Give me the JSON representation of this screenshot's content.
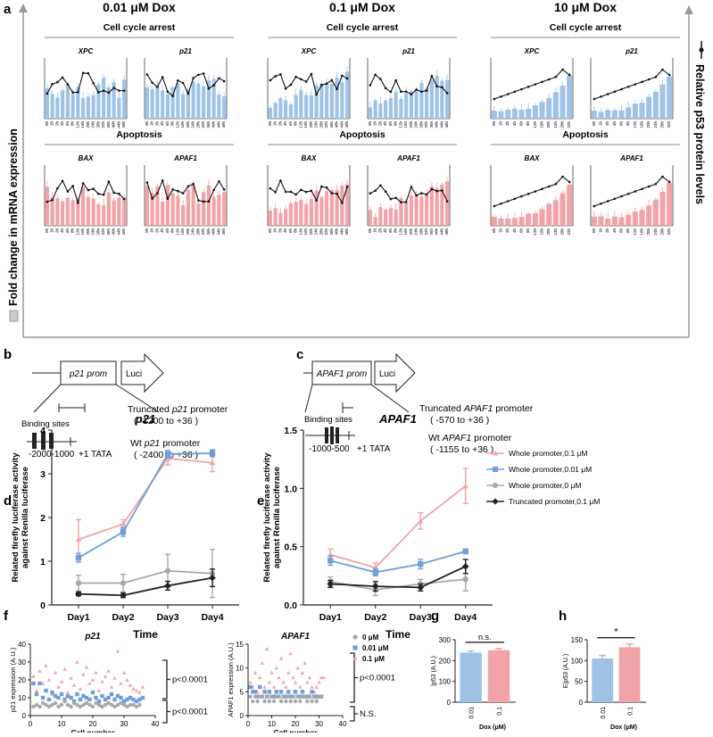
{
  "panel_letters": {
    "a": "a",
    "b": "b",
    "c": "c",
    "d": "d",
    "e": "e",
    "f": "f",
    "g": "g",
    "h": "h"
  },
  "panel_a": {
    "dose_headers": [
      "0.01 μM  Dox",
      "0.1 μM  Dox",
      "10 μM  Dox"
    ],
    "left_axis_label": "Fold change in mRNA expression",
    "right_axis_label": "Relative p53 protein levels",
    "group_titles": {
      "top": "Cell cycle arrest",
      "bottom": "Apoptosis"
    },
    "gene_names": {
      "top": [
        "XPC",
        "p21"
      ],
      "bottom": [
        "BAX",
        "APAF1"
      ]
    },
    "colors": {
      "arrest": "#9fc2e7",
      "apoptosis": "#f2a3a8",
      "p53": "#111111"
    }
  },
  "panel_b": {
    "prom_label": "p21 prom",
    "luci_label": "Luci",
    "binding_label": "Binding sites",
    "axis_label": "-2000-1000",
    "tata_label": "+1 TATA",
    "truncated_prefix": "Truncated ",
    "truncated_gene": "p21",
    "truncated_suffix": " promoter",
    "truncated_range": "( -1200 to +36 )",
    "wt_prefix": "Wt ",
    "wt_gene": "p21",
    "wt_suffix": " promoter",
    "wt_range": "( -2400 to +36 )"
  },
  "panel_c": {
    "prom_label": "APAF1 prom",
    "luci_label": "Luci",
    "binding_label": "Binding sites",
    "axis_label": "-1000-500",
    "tata_label": "+1 TATA",
    "truncated_prefix": "Truncated ",
    "truncated_gene": "APAF1",
    "truncated_suffix": " promoter",
    "truncated_range": "( -570 to +36 )",
    "wt_prefix": "Wt ",
    "wt_gene": "APAF1",
    "wt_suffix": " promoter",
    "wt_range": "( -1155 to +36 )"
  },
  "chart_data": [
    {
      "id": "d",
      "type": "line",
      "title": "p21",
      "ylabel": "Related firefly luciferase activity against  Renilla luciferase",
      "xlabel": "Time",
      "categories": [
        "Day1",
        "Day2",
        "Day3",
        "Day4"
      ],
      "ylim": [
        0,
        4
      ],
      "yticks": [
        0,
        1,
        2,
        3,
        4
      ],
      "series": [
        {
          "name": "Whole promoter,0.1 μM",
          "color": "#f2a3a8",
          "marker": "triangle",
          "values": [
            1.5,
            1.85,
            3.35,
            3.25
          ],
          "errors": [
            0.45,
            0.1,
            0.15,
            0.2
          ]
        },
        {
          "name": "Whole promoter,0.01 μM",
          "color": "#6f9fd8",
          "marker": "square",
          "values": [
            1.08,
            1.67,
            3.45,
            3.47
          ],
          "errors": [
            0.1,
            0.1,
            0.08,
            0.08
          ]
        },
        {
          "name": "Whole promoter,0 μM",
          "color": "#a8a8a8",
          "marker": "circle",
          "values": [
            0.5,
            0.5,
            0.78,
            0.72
          ],
          "errors": [
            0.18,
            0.2,
            0.38,
            0.55
          ]
        },
        {
          "name": "Truncated promoter,0.1 μM",
          "color": "#222222",
          "marker": "diamond",
          "values": [
            0.25,
            0.22,
            0.44,
            0.62
          ],
          "errors": [
            0.04,
            0.05,
            0.1,
            0.2
          ]
        }
      ]
    },
    {
      "id": "e",
      "type": "line",
      "title": "APAF1",
      "ylabel": "Related firefly luciferase activity against  Renilla luciferase",
      "xlabel": "Time",
      "categories": [
        "Day1",
        "Day2",
        "Day3",
        "Day4"
      ],
      "ylim": [
        0,
        1.5
      ],
      "yticks": [
        0,
        0.5,
        1.0,
        1.5
      ],
      "series": [
        {
          "name": "Whole promoter,0.1 μM",
          "color": "#f2a3a8",
          "marker": "triangle",
          "values": [
            0.43,
            0.32,
            0.72,
            1.02
          ],
          "errors": [
            0.05,
            0.04,
            0.07,
            0.15
          ]
        },
        {
          "name": "Whole promoter,0.01 μM",
          "color": "#6f9fd8",
          "marker": "square",
          "values": [
            0.38,
            0.28,
            0.35,
            0.46
          ],
          "errors": [
            0.04,
            0.03,
            0.04,
            0.02
          ]
        },
        {
          "name": "Whole promoter,0 μM",
          "color": "#a8a8a8",
          "marker": "circle",
          "values": [
            0.2,
            0.13,
            0.18,
            0.22
          ],
          "errors": [
            0.04,
            0.05,
            0.04,
            0.1
          ]
        },
        {
          "name": "Truncated promoter,0.1 μM",
          "color": "#222222",
          "marker": "diamond",
          "values": [
            0.18,
            0.16,
            0.15,
            0.33
          ],
          "errors": [
            0.03,
            0.04,
            0.03,
            0.06
          ]
        }
      ]
    },
    {
      "id": "f1",
      "type": "scatter",
      "title": "p21",
      "xlabel": "Cell number",
      "ylabel": "p21 expression (A.U.)",
      "xlim": [
        0,
        40
      ],
      "ylim": [
        0,
        40
      ],
      "xticks": [
        0,
        10,
        20,
        30,
        40
      ],
      "yticks": [
        0,
        10,
        20,
        30,
        40
      ],
      "series": [
        {
          "name": "0.1 μM",
          "color": "#f2a3a8",
          "marker": "triangle",
          "x": [
            1,
            2,
            3,
            4,
            5,
            6,
            7,
            8,
            9,
            10,
            11,
            12,
            13,
            14,
            15,
            16,
            17,
            18,
            19,
            20,
            21,
            22,
            23,
            24,
            25,
            26,
            27,
            28,
            29,
            30,
            31,
            32,
            33,
            34,
            35,
            36
          ],
          "y": [
            22,
            14,
            25,
            18,
            28,
            20,
            12,
            24,
            16,
            19,
            26,
            13,
            21,
            17,
            30,
            15,
            23,
            27,
            18,
            20,
            24,
            14,
            19,
            22,
            25,
            16,
            21,
            36,
            18,
            24,
            20,
            17,
            15,
            14,
            13,
            16
          ]
        },
        {
          "name": "0.01 μM",
          "color": "#6f9fd8",
          "marker": "square",
          "x": [
            1,
            2,
            3,
            4,
            5,
            6,
            7,
            8,
            9,
            10,
            11,
            12,
            13,
            14,
            15,
            16,
            17,
            18,
            19,
            20,
            21,
            22,
            23,
            24,
            25,
            26,
            27,
            28,
            29,
            30,
            31,
            32,
            33,
            34,
            35,
            36
          ],
          "y": [
            18,
            12,
            18,
            10,
            14,
            9,
            13,
            11,
            10,
            12,
            9,
            11,
            10,
            8,
            12,
            9,
            11,
            10,
            9,
            13,
            10,
            8,
            11,
            9,
            10,
            12,
            9,
            11,
            10,
            8,
            9,
            10,
            9,
            8,
            9,
            10
          ]
        },
        {
          "name": "0 μM",
          "color": "#a8a8a8",
          "marker": "circle",
          "x": [
            1,
            2,
            3,
            4,
            5,
            6,
            7,
            8,
            9,
            10,
            11,
            12,
            13,
            14,
            15,
            16,
            17,
            18,
            19,
            20,
            21,
            22,
            23,
            24,
            25,
            26,
            27,
            28,
            29,
            30,
            31,
            32,
            33,
            34,
            35
          ],
          "y": [
            5,
            6,
            5,
            7,
            6,
            5,
            6,
            7,
            5,
            6,
            8,
            6,
            5,
            7,
            6,
            5,
            6,
            7,
            6,
            5,
            7,
            6,
            5,
            6,
            7,
            6,
            5,
            6,
            7,
            6,
            5,
            6,
            6,
            5,
            6
          ]
        }
      ],
      "annotations": [
        "p<0.0001",
        "p<0.0001"
      ]
    },
    {
      "id": "f2",
      "type": "scatter",
      "title": "APAF1",
      "xlabel": "Cell number",
      "ylabel": "APAF1 expression (A.U.)",
      "xlim": [
        0,
        40
      ],
      "ylim": [
        0,
        15
      ],
      "xticks": [
        0,
        10,
        20,
        30,
        40
      ],
      "yticks": [
        0,
        5,
        10,
        15
      ],
      "legend": [
        "0 μM",
        "0.01 μM",
        "0.1 μM"
      ],
      "series": [
        {
          "name": "0.1 μM",
          "color": "#f2a3a8",
          "marker": "triangle",
          "x": [
            1,
            2,
            3,
            4,
            5,
            6,
            7,
            8,
            9,
            10,
            11,
            12,
            13,
            14,
            15,
            16,
            17,
            18,
            19,
            20,
            21,
            22,
            23,
            24,
            25,
            26,
            27,
            28,
            29,
            30,
            31,
            32
          ],
          "y": [
            7,
            6,
            9,
            5,
            8,
            11,
            6,
            14,
            7,
            9,
            6,
            10,
            8,
            12,
            7,
            6,
            9,
            13,
            8,
            7,
            10,
            6,
            9,
            11,
            7,
            8,
            6,
            5,
            6,
            7,
            8,
            8
          ]
        },
        {
          "name": "0.01 μM",
          "color": "#6f9fd8",
          "marker": "square",
          "x": [
            1,
            2,
            3,
            4,
            5,
            6,
            7,
            8,
            9,
            10,
            11,
            12,
            13,
            14,
            15,
            16,
            17,
            18,
            19,
            20,
            21,
            22,
            23,
            24,
            25,
            26,
            27,
            28,
            29,
            30,
            31
          ],
          "y": [
            6,
            5,
            5,
            4,
            6,
            4,
            5,
            4,
            5,
            4,
            4,
            5,
            4,
            5,
            4,
            4,
            5,
            4,
            4,
            5,
            4,
            4,
            5,
            4,
            4,
            4,
            5,
            4,
            4,
            4,
            4
          ]
        },
        {
          "name": "0 μM",
          "color": "#a8a8a8",
          "marker": "circle",
          "x": [
            1,
            2,
            3,
            4,
            5,
            6,
            7,
            8,
            9,
            10,
            11,
            12,
            13,
            14,
            15,
            16,
            17,
            18,
            19,
            20,
            21,
            22,
            23,
            24,
            25,
            26,
            27,
            28,
            29,
            30,
            31
          ],
          "y": [
            4,
            3,
            4,
            3,
            4,
            4,
            3,
            4,
            3,
            4,
            3,
            4,
            4,
            3,
            4,
            3,
            4,
            3,
            4,
            3,
            4,
            3,
            4,
            4,
            3,
            4,
            3,
            4,
            3,
            4,
            4
          ]
        }
      ],
      "annotations": [
        "p<0.0001",
        "N.S."
      ]
    },
    {
      "id": "g",
      "type": "bar",
      "title": "",
      "categories": [
        "0.01",
        "0.1"
      ],
      "values": [
        238,
        250
      ],
      "errors": [
        8,
        8
      ],
      "colors": [
        "#9fc2e7",
        "#f2a3a8"
      ],
      "xlabel": "Dox (μM)",
      "ylabel": "|p53 (A.U.)",
      "ylim": [
        0,
        300
      ],
      "yticks": [
        0,
        100,
        200,
        300
      ],
      "annotation": "n.s."
    },
    {
      "id": "h",
      "type": "bar",
      "title": "",
      "categories": [
        "0.01",
        "0.1"
      ],
      "values": [
        105,
        132
      ],
      "errors": [
        7,
        8
      ],
      "colors": [
        "#9fc2e7",
        "#f2a3a8"
      ],
      "xlabel": "Dox (μM)",
      "ylabel": "E|p53 (A.U.)",
      "ylim": [
        0,
        150
      ],
      "yticks": [
        0,
        50,
        100,
        150
      ],
      "annotation": "*"
    }
  ]
}
